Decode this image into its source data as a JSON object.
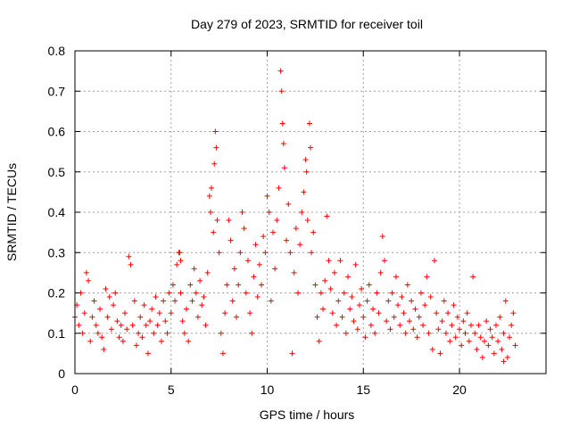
{
  "chart_data": {
    "type": "scatter",
    "title": "Day 279 of 2023, SRMTID for receiver toil",
    "xlabel": "GPS time / hours",
    "ylabel": "SRMTID / TECUs",
    "xlim": [
      0,
      24.5
    ],
    "ylim": [
      0,
      0.8
    ],
    "xticks": [
      0,
      5,
      10,
      15,
      20
    ],
    "yticks": [
      0,
      0.1,
      0.2,
      0.3,
      0.4,
      0.5,
      0.6,
      0.7,
      0.8
    ],
    "grid": true,
    "marker": "+",
    "colors": {
      "series": "#ff0000",
      "grid": "#a0a0a0",
      "axis": "#000000"
    },
    "series": [
      {
        "name": "SRMTID",
        "points": [
          [
            0.0,
            0.14
          ],
          [
            0.1,
            0.17
          ],
          [
            0.2,
            0.12
          ],
          [
            0.3,
            0.2
          ],
          [
            0.4,
            0.1
          ],
          [
            0.5,
            0.15
          ],
          [
            0.6,
            0.25
          ],
          [
            0.7,
            0.23
          ],
          [
            0.8,
            0.08
          ],
          [
            0.9,
            0.14
          ],
          [
            1.0,
            0.18
          ],
          [
            1.1,
            0.12
          ],
          [
            1.2,
            0.1
          ],
          [
            1.3,
            0.16
          ],
          [
            1.4,
            0.09
          ],
          [
            1.5,
            0.06
          ],
          [
            1.6,
            0.21
          ],
          [
            1.7,
            0.14
          ],
          [
            1.8,
            0.19
          ],
          [
            1.9,
            0.11
          ],
          [
            2.0,
            0.17
          ],
          [
            2.1,
            0.2
          ],
          [
            2.2,
            0.13
          ],
          [
            2.3,
            0.09
          ],
          [
            2.4,
            0.12
          ],
          [
            2.5,
            0.08
          ],
          [
            2.6,
            0.15
          ],
          [
            2.7,
            0.11
          ],
          [
            2.8,
            0.29
          ],
          [
            2.9,
            0.27
          ],
          [
            3.0,
            0.12
          ],
          [
            3.1,
            0.18
          ],
          [
            3.2,
            0.07
          ],
          [
            3.3,
            0.1
          ],
          [
            3.4,
            0.14
          ],
          [
            3.5,
            0.09
          ],
          [
            3.6,
            0.17
          ],
          [
            3.7,
            0.12
          ],
          [
            3.8,
            0.05
          ],
          [
            3.9,
            0.13
          ],
          [
            4.0,
            0.16
          ],
          [
            4.1,
            0.1
          ],
          [
            4.2,
            0.19
          ],
          [
            4.3,
            0.12
          ],
          [
            4.4,
            0.15
          ],
          [
            4.5,
            0.08
          ],
          [
            4.6,
            0.18
          ],
          [
            4.7,
            0.13
          ],
          [
            4.8,
            0.1
          ],
          [
            4.9,
            0.2
          ],
          [
            5.0,
            0.15
          ],
          [
            5.1,
            0.22
          ],
          [
            5.2,
            0.18
          ],
          [
            5.3,
            0.27
          ],
          [
            5.4,
            0.3
          ],
          [
            5.5,
            0.2
          ],
          [
            5.6,
            0.13
          ],
          [
            5.7,
            0.1
          ],
          [
            5.8,
            0.16
          ],
          [
            5.9,
            0.08
          ],
          [
            6.0,
            0.22
          ],
          [
            6.1,
            0.18
          ],
          [
            6.2,
            0.26
          ],
          [
            6.3,
            0.2
          ],
          [
            6.4,
            0.14
          ],
          [
            6.5,
            0.23
          ],
          [
            6.6,
            0.17
          ],
          [
            6.7,
            0.19
          ],
          [
            6.8,
            0.12
          ],
          [
            6.9,
            0.25
          ],
          [
            7.0,
            0.44
          ],
          [
            7.05,
            0.4
          ],
          [
            7.1,
            0.46
          ],
          [
            7.2,
            0.35
          ],
          [
            7.25,
            0.52
          ],
          [
            7.3,
            0.6
          ],
          [
            7.35,
            0.56
          ],
          [
            7.4,
            0.38
          ],
          [
            7.5,
            0.3
          ],
          [
            7.6,
            0.1
          ],
          [
            7.7,
            0.05
          ],
          [
            7.8,
            0.15
          ],
          [
            7.9,
            0.22
          ],
          [
            8.0,
            0.38
          ],
          [
            8.1,
            0.33
          ],
          [
            8.2,
            0.18
          ],
          [
            8.3,
            0.26
          ],
          [
            8.4,
            0.14
          ],
          [
            8.5,
            0.22
          ],
          [
            8.6,
            0.3
          ],
          [
            8.7,
            0.4
          ],
          [
            8.8,
            0.36
          ],
          [
            8.9,
            0.2
          ],
          [
            9.0,
            0.28
          ],
          [
            9.1,
            0.15
          ],
          [
            9.2,
            0.1
          ],
          [
            9.3,
            0.24
          ],
          [
            9.4,
            0.32
          ],
          [
            9.5,
            0.19
          ],
          [
            9.6,
            0.27
          ],
          [
            9.7,
            0.22
          ],
          [
            9.8,
            0.34
          ],
          [
            9.9,
            0.3
          ],
          [
            10.0,
            0.44
          ],
          [
            10.1,
            0.4
          ],
          [
            10.2,
            0.18
          ],
          [
            10.3,
            0.35
          ],
          [
            10.4,
            0.26
          ],
          [
            10.5,
            0.38
          ],
          [
            10.6,
            0.46
          ],
          [
            10.7,
            0.75
          ],
          [
            10.75,
            0.7
          ],
          [
            10.8,
            0.62
          ],
          [
            10.85,
            0.57
          ],
          [
            10.9,
            0.51
          ],
          [
            11.0,
            0.33
          ],
          [
            11.1,
            0.42
          ],
          [
            11.2,
            0.3
          ],
          [
            11.3,
            0.05
          ],
          [
            11.4,
            0.25
          ],
          [
            11.5,
            0.36
          ],
          [
            11.6,
            0.2
          ],
          [
            11.7,
            0.32
          ],
          [
            11.8,
            0.4
          ],
          [
            11.9,
            0.45
          ],
          [
            12.0,
            0.53
          ],
          [
            12.05,
            0.5
          ],
          [
            12.1,
            0.38
          ],
          [
            12.2,
            0.62
          ],
          [
            12.25,
            0.56
          ],
          [
            12.3,
            0.3
          ],
          [
            12.4,
            0.35
          ],
          [
            12.5,
            0.22
          ],
          [
            12.6,
            0.14
          ],
          [
            12.7,
            0.08
          ],
          [
            12.8,
            0.2
          ],
          [
            12.9,
            0.16
          ],
          [
            13.0,
            0.23
          ],
          [
            13.1,
            0.39
          ],
          [
            13.2,
            0.28
          ],
          [
            13.3,
            0.21
          ],
          [
            13.4,
            0.15
          ],
          [
            13.5,
            0.25
          ],
          [
            13.6,
            0.12
          ],
          [
            13.7,
            0.18
          ],
          [
            13.8,
            0.28
          ],
          [
            13.9,
            0.14
          ],
          [
            14.0,
            0.2
          ],
          [
            14.1,
            0.1
          ],
          [
            14.2,
            0.24
          ],
          [
            14.3,
            0.16
          ],
          [
            14.4,
            0.19
          ],
          [
            14.5,
            0.13
          ],
          [
            14.6,
            0.27
          ],
          [
            14.7,
            0.11
          ],
          [
            14.8,
            0.17
          ],
          [
            14.9,
            0.21
          ],
          [
            15.0,
            0.14
          ],
          [
            15.1,
            0.09
          ],
          [
            15.2,
            0.18
          ],
          [
            15.3,
            0.22
          ],
          [
            15.4,
            0.12
          ],
          [
            15.5,
            0.16
          ],
          [
            15.6,
            0.1
          ],
          [
            15.7,
            0.2
          ],
          [
            15.8,
            0.15
          ],
          [
            15.9,
            0.25
          ],
          [
            16.0,
            0.34
          ],
          [
            16.1,
            0.28
          ],
          [
            16.2,
            0.13
          ],
          [
            16.3,
            0.18
          ],
          [
            16.4,
            0.11
          ],
          [
            16.5,
            0.2
          ],
          [
            16.6,
            0.14
          ],
          [
            16.7,
            0.24
          ],
          [
            16.8,
            0.17
          ],
          [
            16.9,
            0.12
          ],
          [
            17.0,
            0.19
          ],
          [
            17.1,
            0.15
          ],
          [
            17.2,
            0.1
          ],
          [
            17.3,
            0.22
          ],
          [
            17.4,
            0.13
          ],
          [
            17.5,
            0.18
          ],
          [
            17.6,
            0.11
          ],
          [
            17.7,
            0.16
          ],
          [
            17.8,
            0.09
          ],
          [
            17.9,
            0.14
          ],
          [
            18.0,
            0.2
          ],
          [
            18.1,
            0.12
          ],
          [
            18.2,
            0.17
          ],
          [
            18.3,
            0.24
          ],
          [
            18.4,
            0.1
          ],
          [
            18.5,
            0.19
          ],
          [
            18.6,
            0.06
          ],
          [
            18.7,
            0.28
          ],
          [
            18.8,
            0.15
          ],
          [
            18.9,
            0.11
          ],
          [
            19.0,
            0.05
          ],
          [
            19.1,
            0.13
          ],
          [
            19.2,
            0.18
          ],
          [
            19.3,
            0.1
          ],
          [
            19.4,
            0.15
          ],
          [
            19.5,
            0.08
          ],
          [
            19.6,
            0.12
          ],
          [
            19.7,
            0.17
          ],
          [
            19.8,
            0.09
          ],
          [
            19.9,
            0.14
          ],
          [
            20.0,
            0.11
          ],
          [
            20.1,
            0.07
          ],
          [
            20.2,
            0.13
          ],
          [
            20.3,
            0.1
          ],
          [
            20.4,
            0.15
          ],
          [
            20.5,
            0.08
          ],
          [
            20.6,
            0.12
          ],
          [
            20.7,
            0.24
          ],
          [
            20.8,
            0.1
          ],
          [
            20.9,
            0.06
          ],
          [
            21.0,
            0.12
          ],
          [
            21.1,
            0.09
          ],
          [
            21.2,
            0.04
          ],
          [
            21.3,
            0.08
          ],
          [
            21.4,
            0.13
          ],
          [
            21.5,
            0.07
          ],
          [
            21.6,
            0.11
          ],
          [
            21.7,
            0.09
          ],
          [
            21.8,
            0.05
          ],
          [
            21.9,
            0.12
          ],
          [
            22.0,
            0.08
          ],
          [
            22.1,
            0.14
          ],
          [
            22.2,
            0.06
          ],
          [
            22.3,
            0.1
          ],
          [
            22.4,
            0.18
          ],
          [
            22.5,
            0.04
          ],
          [
            22.6,
            0.09
          ],
          [
            22.7,
            0.12
          ],
          [
            22.8,
            0.15
          ],
          [
            22.9,
            0.07
          ],
          [
            22.3,
            0.03
          ],
          [
            5.5,
            0.28
          ],
          [
            5.45,
            0.3
          ]
        ]
      }
    ]
  }
}
